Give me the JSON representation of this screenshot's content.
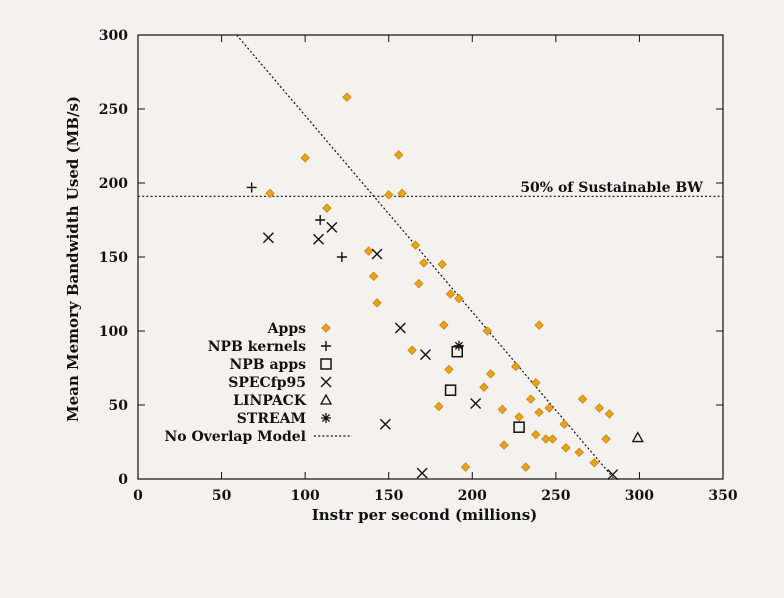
{
  "chart_data": {
    "type": "scatter",
    "title": "",
    "xlabel": "Instr per second (millions)",
    "ylabel": "Mean Memory Bandwidth Used (MB/s)",
    "xlim": [
      0,
      350
    ],
    "ylim": [
      0,
      300
    ],
    "xticks": [
      0,
      50,
      100,
      150,
      200,
      250,
      300,
      350
    ],
    "yticks": [
      0,
      50,
      100,
      150,
      200,
      250,
      300
    ],
    "grid": false,
    "legend_position": "bottom-left",
    "colors": {
      "apps": "#e8a317",
      "ink": "#111111",
      "background": "#f4f2ef"
    },
    "series": [
      {
        "name": "Apps",
        "marker": "diamond",
        "points": [
          [
            125,
            258
          ],
          [
            100,
            217
          ],
          [
            156,
            219
          ],
          [
            79,
            193
          ],
          [
            113,
            183
          ],
          [
            150,
            192
          ],
          [
            158,
            193
          ],
          [
            138,
            154
          ],
          [
            166,
            158
          ],
          [
            171,
            146
          ],
          [
            182,
            145
          ],
          [
            141,
            137
          ],
          [
            168,
            132
          ],
          [
            187,
            125
          ],
          [
            192,
            122
          ],
          [
            143,
            119
          ],
          [
            183,
            104
          ],
          [
            209,
            100
          ],
          [
            240,
            104
          ],
          [
            164,
            87
          ],
          [
            226,
            76
          ],
          [
            211,
            71
          ],
          [
            186,
            74
          ],
          [
            207,
            62
          ],
          [
            238,
            65
          ],
          [
            180,
            49
          ],
          [
            235,
            54
          ],
          [
            218,
            47
          ],
          [
            240,
            45
          ],
          [
            246,
            48
          ],
          [
            266,
            54
          ],
          [
            276,
            48
          ],
          [
            282,
            44
          ],
          [
            228,
            42
          ],
          [
            255,
            37
          ],
          [
            238,
            30
          ],
          [
            244,
            27
          ],
          [
            256,
            21
          ],
          [
            280,
            27
          ],
          [
            264,
            18
          ],
          [
            248,
            27
          ],
          [
            219,
            23
          ],
          [
            273,
            11
          ],
          [
            232,
            8
          ],
          [
            196,
            8
          ]
        ]
      },
      {
        "name": "NPB kernels",
        "marker": "plus",
        "points": [
          [
            68,
            197
          ],
          [
            109,
            175
          ],
          [
            122,
            150
          ]
        ]
      },
      {
        "name": "NPB apps",
        "marker": "square",
        "points": [
          [
            187,
            60
          ],
          [
            191,
            86
          ],
          [
            228,
            35
          ]
        ]
      },
      {
        "name": "SPECfp95",
        "marker": "x",
        "points": [
          [
            78,
            163
          ],
          [
            108,
            162
          ],
          [
            116,
            170
          ],
          [
            143,
            152
          ],
          [
            157,
            102
          ],
          [
            172,
            84
          ],
          [
            202,
            51
          ],
          [
            148,
            37
          ],
          [
            170,
            4
          ],
          [
            284,
            3
          ]
        ]
      },
      {
        "name": "LINPACK",
        "marker": "triangle",
        "points": [
          [
            299,
            28
          ]
        ]
      },
      {
        "name": "STREAM",
        "marker": "asterisk",
        "points": [
          [
            192,
            90
          ]
        ]
      }
    ],
    "lines": [
      {
        "name": "No Overlap Model",
        "style": "dotted",
        "from": [
          59,
          300
        ],
        "to": [
          285,
          0
        ]
      },
      {
        "name": "50% of Sustainable BW",
        "style": "dotted",
        "from": [
          0,
          191
        ],
        "to": [
          350,
          191
        ]
      }
    ],
    "annotations": [
      {
        "text": "50% of Sustainable BW",
        "x": 338,
        "y": 194
      }
    ]
  }
}
